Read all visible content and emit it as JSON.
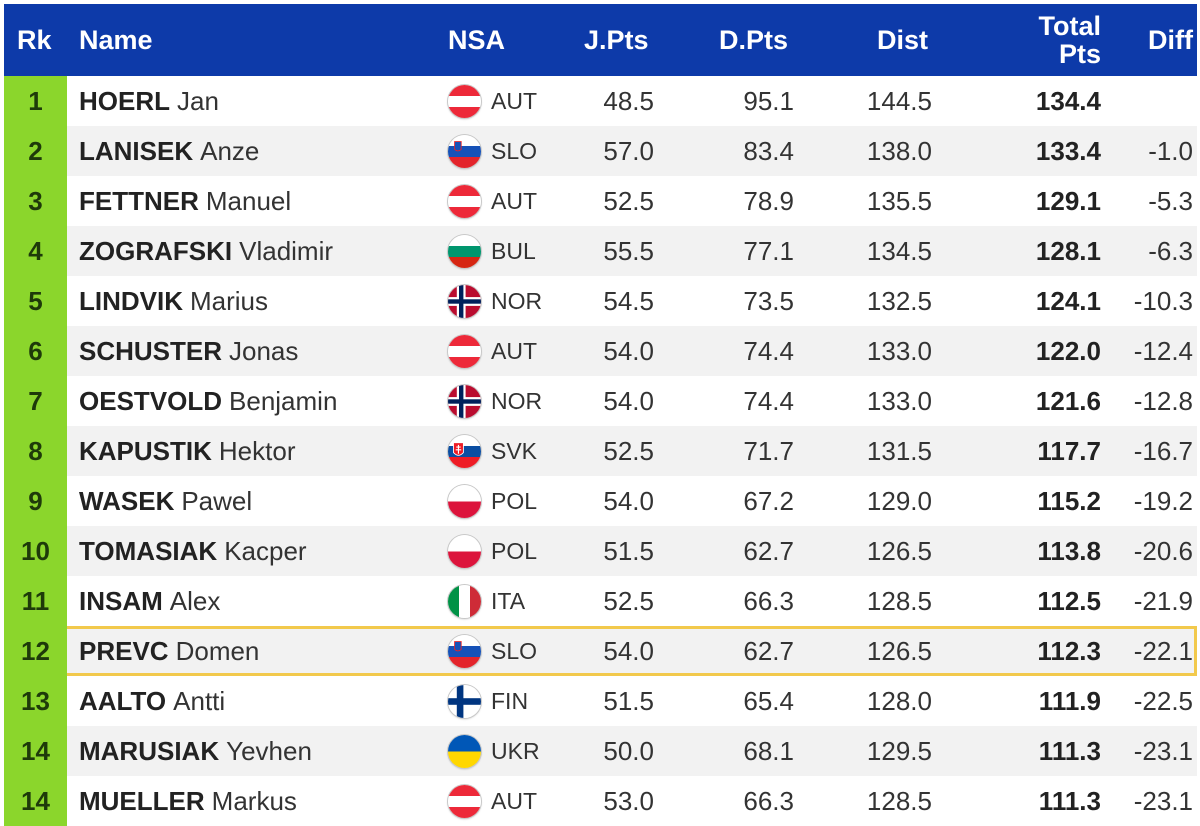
{
  "header": {
    "rk": "Rk",
    "name": "Name",
    "nsa": "NSA",
    "jpts": "J.Pts",
    "dpts": "D.Pts",
    "dist": "Dist",
    "total_line1": "Total",
    "total_line2": "Pts",
    "diff": "Diff"
  },
  "colors": {
    "header_bg": "#0d3aa9",
    "rank_bg": "#8bd62c",
    "highlight_border": "#f2c94c"
  },
  "rows": [
    {
      "rk": "1",
      "last": "HOERL",
      "first": "Jan",
      "nsa": "AUT",
      "flag": "austria-flag-icon",
      "jpts": "48.5",
      "dpts": "95.1",
      "dist": "144.5",
      "total": "134.4",
      "diff": ""
    },
    {
      "rk": "2",
      "last": "LANISEK",
      "first": "Anze",
      "nsa": "SLO",
      "flag": "slovenia-flag-icon",
      "jpts": "57.0",
      "dpts": "83.4",
      "dist": "138.0",
      "total": "133.4",
      "diff": "-1.0"
    },
    {
      "rk": "3",
      "last": "FETTNER",
      "first": "Manuel",
      "nsa": "AUT",
      "flag": "austria-flag-icon",
      "jpts": "52.5",
      "dpts": "78.9",
      "dist": "135.5",
      "total": "129.1",
      "diff": "-5.3"
    },
    {
      "rk": "4",
      "last": "ZOGRAFSKI",
      "first": "Vladimir",
      "nsa": "BUL",
      "flag": "bulgaria-flag-icon",
      "jpts": "55.5",
      "dpts": "77.1",
      "dist": "134.5",
      "total": "128.1",
      "diff": "-6.3"
    },
    {
      "rk": "5",
      "last": "LINDVIK",
      "first": "Marius",
      "nsa": "NOR",
      "flag": "norway-flag-icon",
      "jpts": "54.5",
      "dpts": "73.5",
      "dist": "132.5",
      "total": "124.1",
      "diff": "-10.3"
    },
    {
      "rk": "6",
      "last": "SCHUSTER",
      "first": "Jonas",
      "nsa": "AUT",
      "flag": "austria-flag-icon",
      "jpts": "54.0",
      "dpts": "74.4",
      "dist": "133.0",
      "total": "122.0",
      "diff": "-12.4"
    },
    {
      "rk": "7",
      "last": "OESTVOLD",
      "first": "Benjamin",
      "nsa": "NOR",
      "flag": "norway-flag-icon",
      "jpts": "54.0",
      "dpts": "74.4",
      "dist": "133.0",
      "total": "121.6",
      "diff": "-12.8"
    },
    {
      "rk": "8",
      "last": "KAPUSTIK",
      "first": "Hektor",
      "nsa": "SVK",
      "flag": "slovakia-flag-icon",
      "jpts": "52.5",
      "dpts": "71.7",
      "dist": "131.5",
      "total": "117.7",
      "diff": "-16.7"
    },
    {
      "rk": "9",
      "last": "WASEK",
      "first": "Pawel",
      "nsa": "POL",
      "flag": "poland-flag-icon",
      "jpts": "54.0",
      "dpts": "67.2",
      "dist": "129.0",
      "total": "115.2",
      "diff": "-19.2"
    },
    {
      "rk": "10",
      "last": "TOMASIAK",
      "first": "Kacper",
      "nsa": "POL",
      "flag": "poland-flag-icon",
      "jpts": "51.5",
      "dpts": "62.7",
      "dist": "126.5",
      "total": "113.8",
      "diff": "-20.6"
    },
    {
      "rk": "11",
      "last": "INSAM",
      "first": "Alex",
      "nsa": "ITA",
      "flag": "italy-flag-icon",
      "jpts": "52.5",
      "dpts": "66.3",
      "dist": "128.5",
      "total": "112.5",
      "diff": "-21.9"
    },
    {
      "rk": "12",
      "last": "PREVC",
      "first": "Domen",
      "nsa": "SLO",
      "flag": "slovenia-flag-icon",
      "jpts": "54.0",
      "dpts": "62.7",
      "dist": "126.5",
      "total": "112.3",
      "diff": "-22.1",
      "highlight": true
    },
    {
      "rk": "13",
      "last": "AALTO",
      "first": "Antti",
      "nsa": "FIN",
      "flag": "finland-flag-icon",
      "jpts": "51.5",
      "dpts": "65.4",
      "dist": "128.0",
      "total": "111.9",
      "diff": "-22.5"
    },
    {
      "rk": "14",
      "last": "MARUSIAK",
      "first": "Yevhen",
      "nsa": "UKR",
      "flag": "ukraine-flag-icon",
      "jpts": "50.0",
      "dpts": "68.1",
      "dist": "129.5",
      "total": "111.3",
      "diff": "-23.1"
    },
    {
      "rk": "14",
      "last": "MUELLER",
      "first": "Markus",
      "nsa": "AUT",
      "flag": "austria-flag-icon",
      "jpts": "53.0",
      "dpts": "66.3",
      "dist": "128.5",
      "total": "111.3",
      "diff": "-23.1"
    }
  ]
}
